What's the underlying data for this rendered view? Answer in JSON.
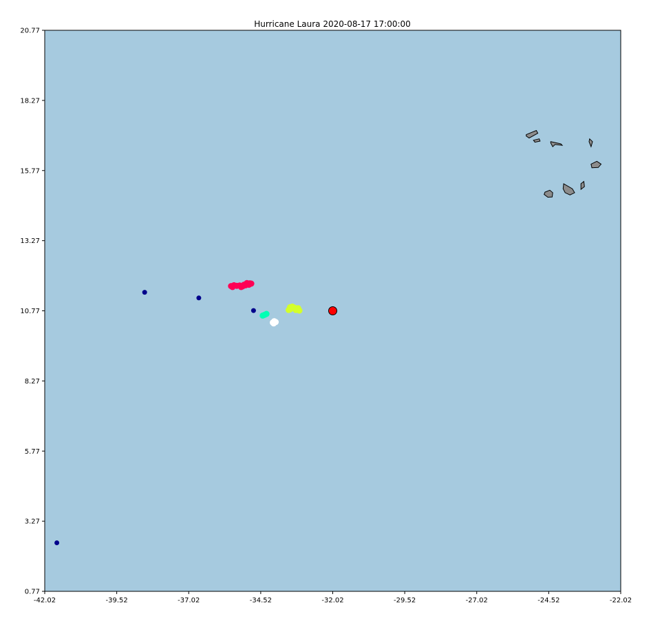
{
  "chart_data": {
    "type": "scatter",
    "title": "Hurricane Laura 2020-08-17 17:00:00",
    "xlabel": "",
    "ylabel": "",
    "xlim": [
      -42.02,
      -22.02
    ],
    "ylim": [
      0.77,
      20.77
    ],
    "x_ticks": [
      "-42.02",
      "-39.52",
      "-37.02",
      "-34.52",
      "-32.02",
      "-29.52",
      "-27.02",
      "-24.52",
      "-22.02"
    ],
    "y_ticks": [
      "20.77",
      "18.27",
      "15.77",
      "13.27",
      "10.77",
      "8.27",
      "5.77",
      "3.27",
      "0.77"
    ],
    "grid": false,
    "colors": {
      "ocean": "#a6cadf",
      "land": "#8c8c8c",
      "land_edge": "#000000",
      "center_marker": "#ff0000"
    },
    "series": [
      {
        "color": "#00008b",
        "points": [
          [
            -41.6,
            2.5
          ],
          [
            -38.55,
            11.43
          ],
          [
            -36.67,
            11.23
          ],
          [
            -34.77,
            10.78
          ]
        ]
      },
      {
        "color": "#ff0055",
        "points": [
          [
            -35.55,
            11.65
          ],
          [
            -35.45,
            11.68
          ],
          [
            -35.35,
            11.66
          ],
          [
            -35.25,
            11.67
          ],
          [
            -35.15,
            11.64
          ],
          [
            -35.05,
            11.68
          ],
          [
            -34.97,
            11.72
          ],
          [
            -34.9,
            11.75
          ],
          [
            -34.85,
            11.74
          ],
          [
            -35.5,
            11.62
          ],
          [
            -35.1,
            11.7
          ],
          [
            -35.2,
            11.62
          ],
          [
            -35.0,
            11.76
          ],
          [
            -34.93,
            11.7
          ]
        ]
      },
      {
        "color": "#00ffb4",
        "points": [
          [
            -34.45,
            10.6
          ],
          [
            -34.38,
            10.63
          ],
          [
            -34.32,
            10.66
          ]
        ]
      },
      {
        "color": "#ffffff",
        "points": [
          [
            -34.1,
            10.35
          ],
          [
            -34.05,
            10.4
          ],
          [
            -34.0,
            10.37
          ],
          [
            -34.07,
            10.32
          ]
        ]
      },
      {
        "color": "#d4ff2a",
        "points": [
          [
            -33.55,
            10.8
          ],
          [
            -33.5,
            10.9
          ],
          [
            -33.42,
            10.92
          ],
          [
            -33.35,
            10.88
          ],
          [
            -33.28,
            10.85
          ],
          [
            -33.22,
            10.86
          ],
          [
            -33.18,
            10.78
          ],
          [
            -33.5,
            10.82
          ],
          [
            -33.3,
            10.8
          ]
        ]
      }
    ],
    "center": {
      "x": -32.02,
      "y": 10.77
    },
    "islands": [
      [
        [
          -25.3,
          17.05
        ],
        [
          -24.95,
          17.2
        ],
        [
          -24.9,
          17.1
        ],
        [
          -25.2,
          16.93
        ],
        [
          -25.3,
          17.0
        ]
      ],
      [
        [
          -25.05,
          16.85
        ],
        [
          -24.85,
          16.9
        ],
        [
          -24.82,
          16.82
        ],
        [
          -25.0,
          16.78
        ]
      ],
      [
        [
          -24.45,
          16.8
        ],
        [
          -24.1,
          16.72
        ],
        [
          -24.05,
          16.67
        ],
        [
          -24.3,
          16.7
        ],
        [
          -24.38,
          16.62
        ],
        [
          -24.45,
          16.75
        ]
      ],
      [
        [
          -23.1,
          16.9
        ],
        [
          -23.0,
          16.8
        ],
        [
          -23.05,
          16.62
        ],
        [
          -23.12,
          16.8
        ]
      ],
      [
        [
          -23.05,
          16.0
        ],
        [
          -22.85,
          16.1
        ],
        [
          -22.7,
          16.0
        ],
        [
          -22.8,
          15.88
        ],
        [
          -23.02,
          15.87
        ]
      ],
      [
        [
          -23.4,
          15.3
        ],
        [
          -23.3,
          15.38
        ],
        [
          -23.28,
          15.2
        ],
        [
          -23.4,
          15.1
        ]
      ],
      [
        [
          -24.0,
          15.3
        ],
        [
          -23.7,
          15.12
        ],
        [
          -23.62,
          14.98
        ],
        [
          -23.78,
          14.9
        ],
        [
          -23.95,
          14.98
        ],
        [
          -24.02,
          15.12
        ]
      ],
      [
        [
          -24.65,
          15.0
        ],
        [
          -24.48,
          15.07
        ],
        [
          -24.38,
          14.98
        ],
        [
          -24.4,
          14.83
        ],
        [
          -24.55,
          14.82
        ],
        [
          -24.68,
          14.92
        ]
      ]
    ]
  }
}
